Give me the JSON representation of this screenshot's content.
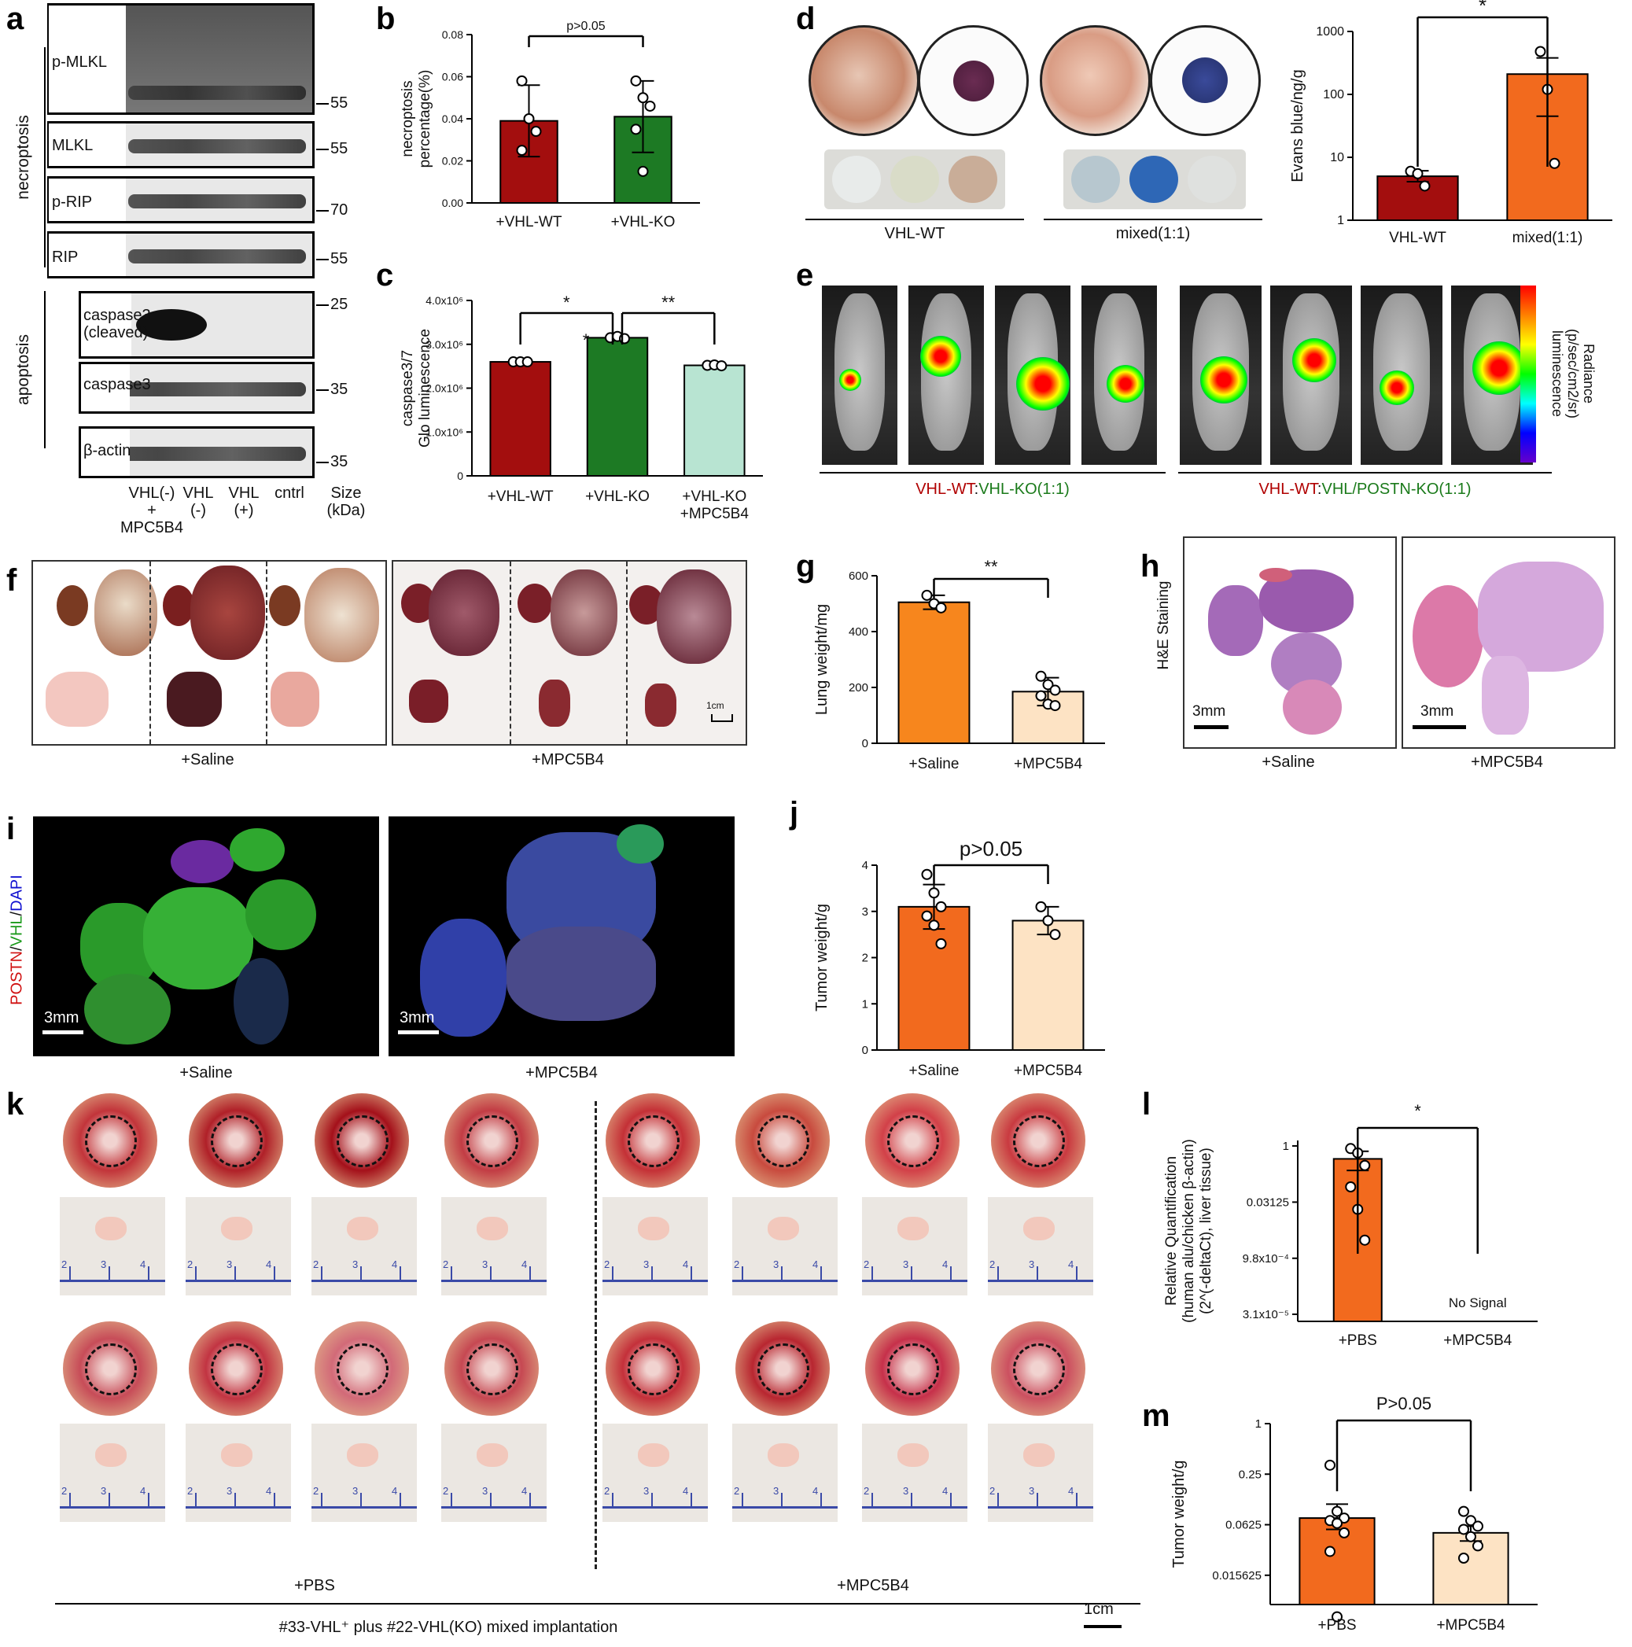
{
  "panels": [
    "a",
    "b",
    "c",
    "d",
    "e",
    "f",
    "g",
    "h",
    "i",
    "j",
    "k",
    "l",
    "m"
  ],
  "panel_a": {
    "group_labels": [
      "necroptosis",
      "apoptosis"
    ],
    "blots": [
      {
        "label": "p-MLKL",
        "size": "55"
      },
      {
        "label": "MLKL",
        "size": "55"
      },
      {
        "label": "p-RIP",
        "size": "70"
      },
      {
        "label": "RIP",
        "size": "55"
      },
      {
        "label": "caspase3\n(cleaved)",
        "size": "25"
      },
      {
        "label": "caspase3",
        "size": "35"
      },
      {
        "label": "β-actin",
        "size": "35"
      }
    ],
    "lanes": [
      "VHL(-)\n+\nMPC5B4",
      "VHL\n(-)",
      "VHL\n(+)",
      "cntrl"
    ],
    "size_header": "Size\n(kDa)"
  },
  "panel_d": {
    "groups": [
      "VHL-WT",
      "mixed(1:1)"
    ]
  },
  "panel_e": {
    "groups": [
      {
        "parts": [
          {
            "text": "VHL-WT",
            "color": "#b00000"
          },
          {
            "text": ":",
            "color": "#111111"
          },
          {
            "text": "VHL-KO",
            "color": "#1a7a1a"
          },
          {
            "text": "(1:1)",
            "color": "#1a7a1a"
          }
        ]
      },
      {
        "parts": [
          {
            "text": "VHL-WT",
            "color": "#b00000"
          },
          {
            "text": ":",
            "color": "#111111"
          },
          {
            "text": "VHL/POSTN-KO",
            "color": "#1a7a1a"
          },
          {
            "text": "(1:1)",
            "color": "#1a7a1a"
          }
        ]
      }
    ],
    "colorbar_label": "Radiance\n(p/sec/cm2/sr)\nluminescence"
  },
  "panel_f": {
    "groups": [
      "+Saline",
      "+MPC5B4"
    ],
    "scale": "1cm"
  },
  "panel_h": {
    "ylabel": "H&E Staining",
    "groups": [
      "+Saline",
      "+MPC5B4"
    ],
    "scale": "3mm"
  },
  "panel_i": {
    "ylabel_parts": [
      {
        "text": "POSTN",
        "color": "#d01010"
      },
      {
        "text": "/",
        "color": "#111111"
      },
      {
        "text": "VHL",
        "color": "#1a9a1a"
      },
      {
        "text": "/",
        "color": "#111111"
      },
      {
        "text": "DAPI",
        "color": "#1010d0"
      }
    ],
    "groups": [
      "+Saline",
      "+MPC5B4"
    ],
    "scale": "3mm"
  },
  "panel_k": {
    "groups": [
      "+PBS",
      "+MPC5B4"
    ],
    "caption": "#33-VHL⁺ plus #22-VHL(KO) mixed implantation",
    "scale": "1cm",
    "ruler_ticks": [
      "2",
      "3",
      "4"
    ]
  },
  "chart_data": [
    {
      "panel": "b",
      "type": "bar",
      "categories": [
        "+VHL-WT",
        "+VHL-KO"
      ],
      "values": [
        0.039,
        0.041
      ],
      "errors": [
        0.017,
        0.017
      ],
      "points": [
        [
          0.058,
          0.04,
          0.034,
          0.025
        ],
        [
          0.058,
          0.05,
          0.046,
          0.035,
          0.015
        ]
      ],
      "colors": [
        "#a30e0e",
        "#1d7a24"
      ],
      "ylabel": "necroptosis\npercentage(%)",
      "ylim": [
        0,
        0.08
      ],
      "yticks": [
        "0.00",
        "0.02",
        "0.04",
        "0.06",
        "0.08"
      ],
      "annotation": "p>0.05"
    },
    {
      "panel": "c",
      "type": "bar",
      "categories": [
        "+VHL-WT",
        "+VHL-KO",
        "+VHL-KO\n+MPC5B4"
      ],
      "values": [
        2600000,
        3150000,
        2520000
      ],
      "errors": [
        20000,
        40000,
        30000
      ],
      "points": [
        [
          2600000,
          2600000,
          2600000
        ],
        [
          3150000,
          3180000,
          3130000
        ],
        [
          2520000,
          2530000,
          2510000
        ]
      ],
      "colors": [
        "#a30e0e",
        "#1d7a24",
        "#b8e4d2"
      ],
      "ylabel": "caspase3/7\nGlo luminescence",
      "ylim": [
        0,
        4000000
      ],
      "yticks": [
        "0",
        "1.0x10⁶",
        "2.0x10⁶",
        "3.0x10⁶",
        "4.0x10⁶"
      ],
      "annotations": [
        "*",
        "*",
        "**"
      ]
    },
    {
      "panel": "d",
      "type": "bar",
      "log": true,
      "categories": [
        "VHL-WT",
        "mixed(1:1)"
      ],
      "values": [
        5,
        210
      ],
      "err_low": [
        4.1,
        45
      ],
      "err_high": [
        6.1,
        380
      ],
      "points": [
        [
          6,
          5.5,
          3.5
        ],
        [
          480,
          120,
          8
        ]
      ],
      "colors": [
        "#a30e0e",
        "#f26a1e"
      ],
      "ylabel": "Evans blue/ng/g",
      "ylim": [
        1,
        1000
      ],
      "yticks": [
        "1",
        "10",
        "100",
        "1000"
      ],
      "annotation": "*"
    },
    {
      "panel": "g",
      "type": "bar",
      "categories": [
        "+Saline",
        "+MPC5B4"
      ],
      "values": [
        505,
        185
      ],
      "errors": [
        25,
        50
      ],
      "points": [
        [
          530,
          500,
          485
        ],
        [
          240,
          210,
          190,
          170,
          140,
          135
        ]
      ],
      "colors": [
        "#f7861d",
        "#fde3c4"
      ],
      "ylabel": "Lung weight/mg",
      "ylim": [
        0,
        600
      ],
      "yticks": [
        "0",
        "200",
        "400",
        "600"
      ],
      "annotation": "**"
    },
    {
      "panel": "j",
      "type": "bar",
      "categories": [
        "+Saline",
        "+MPC5B4"
      ],
      "values": [
        3.1,
        2.8
      ],
      "errors": [
        0.48,
        0.3
      ],
      "points": [
        [
          3.8,
          3.4,
          3.1,
          2.9,
          2.7,
          2.3
        ],
        [
          3.1,
          2.8,
          2.5
        ]
      ],
      "colors": [
        "#f26a1e",
        "#fde3c4"
      ],
      "ylabel": "Tumor weight/g",
      "ylim": [
        0,
        4
      ],
      "yticks": [
        "0",
        "1",
        "2",
        "3",
        "4"
      ],
      "annotation": "p>0.05"
    },
    {
      "panel": "l",
      "type": "bar",
      "log": true,
      "categories": [
        "+PBS",
        "+MPC5B4"
      ],
      "values": [
        0.45,
        null
      ],
      "err_low": [
        0.22,
        null
      ],
      "err_high": [
        0.72,
        null
      ],
      "points": [
        [
          0.85,
          0.65,
          0.3,
          0.08,
          0.02,
          0.003
        ],
        []
      ],
      "colors": [
        "#f26a1e",
        "#ffffff"
      ],
      "ylabel": "Relative Quantification\n(human alu/chicken β-actin)\n(2^(-deltaCt), liver tissue)",
      "ylim": [
        2e-05,
        1.4
      ],
      "yticks": [
        "1",
        "0.03125",
        "9.8x10⁻⁴",
        "3.1x10⁻⁵"
      ],
      "ytick_values": [
        1,
        0.03125,
        0.00098,
        3.1e-05
      ],
      "no_signal": "No Signal",
      "annotation": "*"
    },
    {
      "panel": "m",
      "type": "bar",
      "log": true,
      "categories": [
        "+PBS",
        "+MPC5B4"
      ],
      "values": [
        0.075,
        0.05
      ],
      "err_low": [
        0.055,
        0.04
      ],
      "err_high": [
        0.11,
        0.06
      ],
      "points": [
        [
          0.32,
          0.09,
          0.075,
          0.07,
          0.065,
          0.05,
          0.03,
          0.005
        ],
        [
          0.09,
          0.07,
          0.06,
          0.055,
          0.045,
          0.035,
          0.025
        ]
      ],
      "colors": [
        "#f26a1e",
        "#fde3c4"
      ],
      "ylabel": "Tumor weight/g",
      "ylim": [
        0.007,
        1
      ],
      "yticks": [
        "1",
        "0.25",
        "0.0625",
        "0.015625"
      ],
      "ytick_values": [
        1,
        0.25,
        0.0625,
        0.015625
      ],
      "annotation": "P>0.05"
    }
  ]
}
